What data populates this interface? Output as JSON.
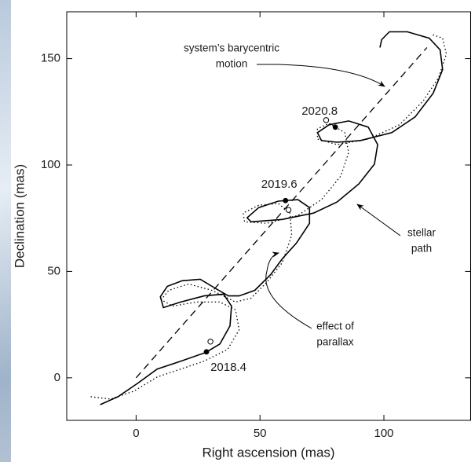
{
  "chart_data": {
    "type": "line",
    "x_label": "Right ascension (mas)",
    "y_label": "Declination (mas)",
    "xlim": [
      -28,
      135
    ],
    "ylim": [
      -20,
      172
    ],
    "xticks": [
      0,
      50,
      100
    ],
    "yticks": [
      0,
      50,
      100,
      150
    ],
    "series": [
      {
        "style": "solid",
        "color": "#000000",
        "x": [
          -14.5,
          -7.3,
          0.6,
          8.5,
          18,
          28.1,
          33.8,
          37.9,
          38.5,
          35.3,
          27.4,
          18,
          11,
          9.8,
          12.6,
          18.6,
          25.9,
          31.2,
          37.2,
          41.6,
          47.9,
          54.3,
          59,
          64.7,
          70,
          70,
          65.3,
          57.4,
          49.5,
          44.8,
          46.4,
          59,
          71.6,
          81.1,
          89.9,
          96.2,
          97.5,
          93.7,
          85.8,
          77.9,
          73.2,
          74.8,
          81.1,
          90.5,
          103.2,
          112.6,
          119.9,
          123.7,
          122.7,
          118.3,
          109.5,
          102.2,
          99.1,
          98.4
        ],
        "values": [
          -12.6,
          -8.9,
          -2.6,
          4.1,
          7.8,
          11.9,
          15.9,
          24.4,
          33.7,
          39.3,
          38.5,
          35.6,
          33,
          38.1,
          43,
          45.6,
          46.3,
          42.6,
          38.5,
          38.5,
          41.1,
          48.5,
          55.9,
          63.3,
          72.6,
          80,
          83.7,
          83,
          80,
          75.2,
          73.3,
          74.4,
          77.4,
          82.6,
          91.1,
          100.4,
          109.6,
          117.8,
          120.7,
          118.9,
          115.2,
          111.5,
          110.7,
          111.5,
          115.2,
          122.6,
          133.7,
          144.8,
          154.1,
          159.6,
          162.6,
          162.6,
          158.9,
          155.2
        ]
      },
      {
        "style": "dotted",
        "color": "#000000",
        "x": [
          -18.3,
          -10.4,
          -0.9,
          8.5,
          18,
          27.4,
          36.9,
          41.6,
          40.1,
          33.8,
          24.3,
          14.8,
          10.1,
          13.2,
          21.1,
          30.6,
          40.1,
          46.4,
          52.7,
          59,
          62.8,
          62.1,
          57.4,
          49.5,
          43.2,
          43.8,
          52.7,
          65.3,
          74.8,
          82.6,
          85.8,
          84.2,
          77.9,
          73.2,
          73.2,
          81.1,
          93.7,
          106.3,
          115.8,
          122.1,
          125.2,
          123.7,
          119
        ],
        "values": [
          -8.9,
          -10,
          -6.3,
          0.4,
          4.1,
          7.8,
          13.3,
          22.6,
          31.9,
          35.6,
          35.6,
          33.7,
          36.7,
          41.1,
          44.1,
          41.1,
          35.6,
          37.4,
          44.8,
          54.1,
          67,
          77.4,
          81.9,
          81.1,
          77.4,
          73.3,
          72.6,
          76.3,
          83.7,
          94.8,
          105.9,
          115.2,
          119.6,
          117,
          112.2,
          109.6,
          112.2,
          118.9,
          130,
          141.1,
          152.2,
          159.6,
          161.5
        ]
      },
      {
        "style": "dashed",
        "color": "#000000",
        "x": [
          0,
          117.4
        ],
        "values": [
          0,
          155.2
        ]
      }
    ],
    "epochs": {
      "labels": [
        "2018.4",
        "2019.6",
        "2020.8"
      ],
      "x": [
        28.4,
        60.3,
        80.4
      ],
      "values": [
        12.2,
        83.3,
        117.8
      ]
    },
    "open_points": {
      "x": [
        30,
        61.5,
        76.7
      ],
      "values": [
        17,
        78.9,
        121.1
      ]
    },
    "annotations": [
      {
        "lines": [
          "system’s barycentric",
          "motion"
        ]
      },
      {
        "lines": [
          "stellar",
          "path"
        ]
      },
      {
        "lines": [
          "effect of",
          "parallax"
        ]
      }
    ]
  }
}
